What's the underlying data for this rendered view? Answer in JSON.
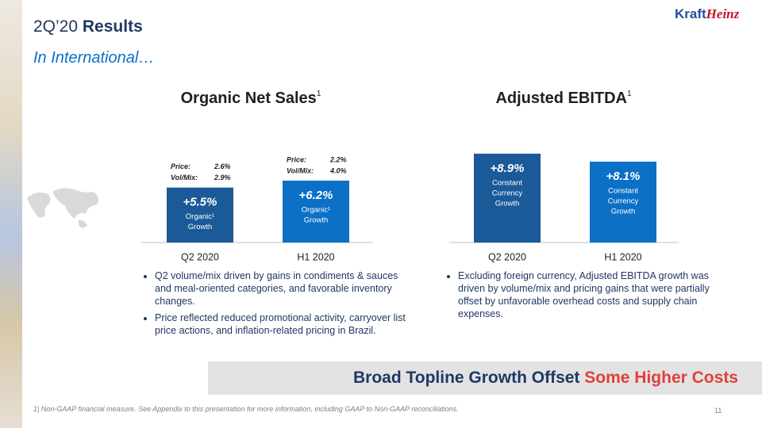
{
  "header": {
    "title_prefix": "2Q’20",
    "title_bold": "Results",
    "subtitle": "In International…",
    "logo_part1": "Kraft",
    "logo_part2": "Heinz"
  },
  "chart_data": [
    {
      "type": "bar",
      "title": "Organic Net Sales",
      "title_sup": "1",
      "categories": [
        "Q2 2020",
        "H1 2020"
      ],
      "values": [
        5.5,
        6.2
      ],
      "value_labels": [
        "+5.5%",
        "+6.2%"
      ],
      "colors": [
        "#1a5a98",
        "#0b70c6"
      ],
      "bar_notes": [
        [
          "Organic¹",
          "Growth"
        ],
        [
          "Organic¹",
          "Growth"
        ]
      ],
      "details": [
        [
          [
            "Price:",
            "2.6%"
          ],
          [
            "Vol/Mix:",
            "2.9%"
          ]
        ],
        [
          [
            "Price:",
            "2.2%"
          ],
          [
            "Vol/Mix:",
            "4.0%"
          ]
        ]
      ],
      "bullets": [
        "Q2 volume/mix driven by gains in condiments & sauces and meal-oriented categories, and favorable inventory changes.",
        "Price reflected reduced promotional activity, carryover list price actions, and inflation-related pricing in Brazil."
      ]
    },
    {
      "type": "bar",
      "title": "Adjusted EBITDA",
      "title_sup": "1",
      "categories": [
        "Q2 2020",
        "H1 2020"
      ],
      "values": [
        8.9,
        8.1
      ],
      "value_labels": [
        "+8.9%",
        "+8.1%"
      ],
      "colors": [
        "#1a5a98",
        "#0b70c6"
      ],
      "bar_notes": [
        [
          "Constant",
          "Currency",
          "Growth"
        ],
        [
          "Constant",
          "Currency",
          "Growth"
        ]
      ],
      "bullets": [
        "Excluding foreign currency, Adjusted EBITDA growth was driven by volume/mix and pricing gains that were partially offset by unfavorable overhead costs and supply chain expenses."
      ]
    }
  ],
  "banner": {
    "text_main": "Broad Topline Growth Offset",
    "text_highlight": "Some Higher Costs"
  },
  "footer": {
    "note": "1| Non-GAAP financial measure. See Appendix to this presentation for more information, including GAAP to Non-GAAP reconciliations.",
    "page_number": "11"
  }
}
